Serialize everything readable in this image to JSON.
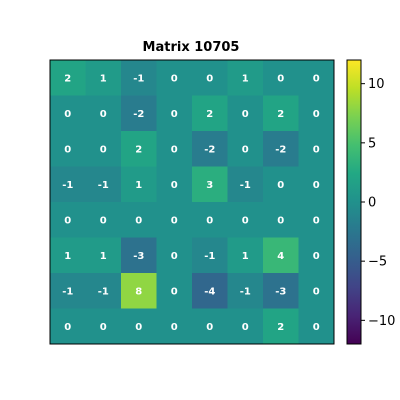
{
  "chart_data": {
    "type": "heatmap",
    "title": "Matrix 10705",
    "colormap": "viridis",
    "vmin": -12,
    "vmax": 12,
    "rows": 8,
    "cols": 8,
    "values": [
      [
        2,
        1,
        -1,
        0,
        0,
        1,
        0,
        0
      ],
      [
        0,
        0,
        -2,
        0,
        2,
        0,
        2,
        0
      ],
      [
        0,
        0,
        2,
        0,
        -2,
        0,
        -2,
        0
      ],
      [
        -1,
        -1,
        1,
        0,
        3,
        -1,
        0,
        0
      ],
      [
        0,
        0,
        0,
        0,
        0,
        0,
        0,
        0
      ],
      [
        1,
        1,
        -3,
        0,
        -1,
        1,
        4,
        0
      ],
      [
        -1,
        -1,
        8,
        0,
        -4,
        -1,
        -3,
        0
      ],
      [
        0,
        0,
        0,
        0,
        0,
        0,
        2,
        0
      ]
    ],
    "colorbar": {
      "ticks": [
        10,
        5,
        0,
        -5,
        -10
      ],
      "tick_labels": [
        "10",
        "5",
        "0",
        "−5",
        "−10"
      ]
    }
  }
}
